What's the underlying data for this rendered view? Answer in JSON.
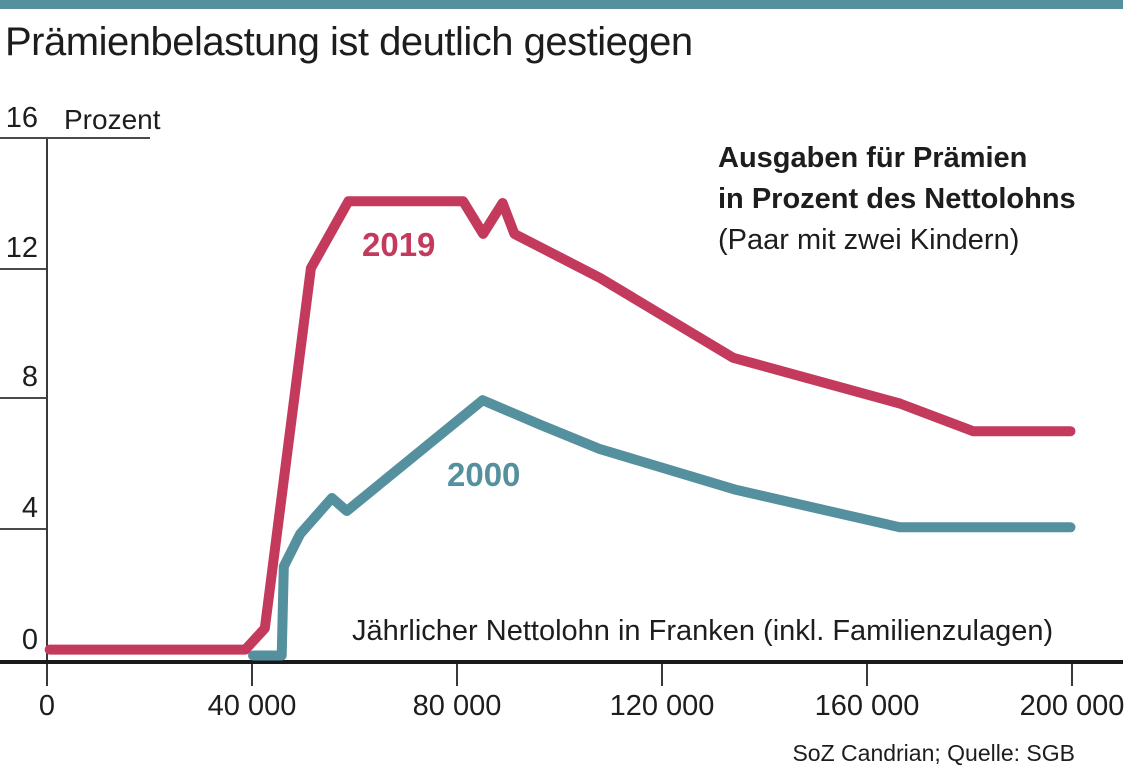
{
  "header": {
    "title": "Prämienbelastung ist deutlich gestiegen"
  },
  "colors": {
    "accent_teal": "#54909d",
    "accent_red": "#c43a5c",
    "text": "#1d1d1d"
  },
  "source_line": "SoZ Candrian; Quelle: SGB",
  "chart_data": {
    "type": "line",
    "title": "Prämienbelastung ist deutlich gestiegen",
    "unit_label": "Prozent",
    "xlabel": "Jährlicher Nettolohn in Franken (inkl. Familienzulagen)",
    "annotation": {
      "line1": "Ausgaben für Prämien",
      "line2": "in Prozent des Nettolohns",
      "line3": "(Paar mit zwei Kindern)"
    },
    "xlim": [
      0,
      210000
    ],
    "ylim": [
      0,
      16
    ],
    "grid": "off",
    "legend_position": "inline-on-curves",
    "x_ticks": {
      "values": [
        0,
        40000,
        80000,
        120000,
        160000,
        200000
      ],
      "labels": [
        "0",
        "40 000",
        "80 000",
        "120 000",
        "160 000",
        "200 000"
      ]
    },
    "y_ticks": {
      "values": [
        16,
        12,
        8,
        4,
        0
      ],
      "labels": [
        "16",
        "12",
        "8",
        "4",
        "0"
      ]
    },
    "series": [
      {
        "name": "2019",
        "color": "#c43a5c",
        "points": [
          [
            500,
            0.35
          ],
          [
            38700,
            0.35
          ],
          [
            42500,
            1.0
          ],
          [
            51500,
            12.05
          ],
          [
            58800,
            14.1
          ],
          [
            81200,
            14.1
          ],
          [
            85100,
            13.1
          ],
          [
            88900,
            14.05
          ],
          [
            91200,
            13.1
          ],
          [
            107900,
            11.75
          ],
          [
            133900,
            9.3
          ],
          [
            166400,
            7.9
          ],
          [
            180700,
            7.05
          ],
          [
            199700,
            7.05
          ]
        ]
      },
      {
        "name": "2000",
        "color": "#54909d",
        "points": [
          [
            40200,
            0.17
          ],
          [
            45800,
            0.17
          ],
          [
            46200,
            2.9
          ],
          [
            49400,
            3.9
          ],
          [
            55600,
            5.0
          ],
          [
            58500,
            4.6
          ],
          [
            85000,
            8.0
          ],
          [
            96200,
            7.25
          ],
          [
            107900,
            6.5
          ],
          [
            134500,
            5.25
          ],
          [
            166400,
            4.1
          ],
          [
            199700,
            4.1
          ]
        ]
      }
    ]
  }
}
